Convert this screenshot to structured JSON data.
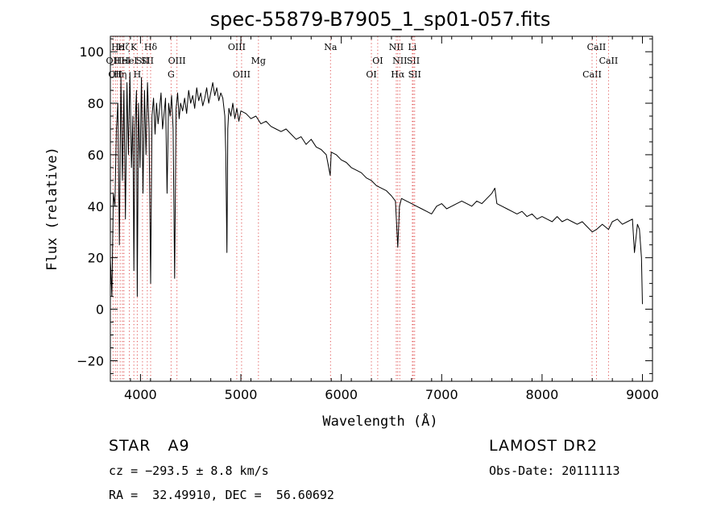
{
  "chart_data": {
    "type": "line",
    "title": "spec-55879-B7905_1_sp01-057.fits",
    "xlabel": "Wavelength (Å)",
    "ylabel": "Flux (relative)",
    "xlim": [
      3700,
      9100
    ],
    "ylim": [
      -28,
      106
    ],
    "x_ticks": [
      4000,
      5000,
      6000,
      7000,
      8000,
      9000
    ],
    "y_ticks": [
      -20,
      0,
      20,
      40,
      60,
      80,
      100
    ],
    "grid": false,
    "line_color": "#000000",
    "marker_color": "#e05050",
    "series": [
      {
        "x": [
          3700,
          3715,
          3730,
          3745,
          3760,
          3775,
          3790,
          3805,
          3820,
          3835,
          3850,
          3865,
          3880,
          3895,
          3910,
          3925,
          3934,
          3945,
          3960,
          3968,
          3980,
          3995,
          4010,
          4025,
          4040,
          4055,
          4070,
          4085,
          4101,
          4115,
          4130,
          4145,
          4160,
          4175,
          4190,
          4205,
          4220,
          4235,
          4250,
          4265,
          4280,
          4295,
          4310,
          4325,
          4340,
          4355,
          4370,
          4385,
          4400,
          4420,
          4440,
          4460,
          4480,
          4500,
          4520,
          4540,
          4560,
          4580,
          4600,
          4620,
          4640,
          4660,
          4680,
          4700,
          4720,
          4740,
          4760,
          4780,
          4800,
          4820,
          4840,
          4850,
          4861,
          4870,
          4880,
          4900,
          4920,
          4940,
          4960,
          4980,
          5000,
          5050,
          5100,
          5150,
          5200,
          5250,
          5300,
          5350,
          5400,
          5450,
          5500,
          5550,
          5600,
          5650,
          5700,
          5750,
          5800,
          5850,
          5890,
          5900,
          5950,
          6000,
          6050,
          6100,
          6150,
          6200,
          6250,
          6300,
          6350,
          6400,
          6450,
          6500,
          6540,
          6563,
          6580,
          6600,
          6650,
          6700,
          6750,
          6800,
          6850,
          6900,
          6950,
          7000,
          7050,
          7100,
          7150,
          7200,
          7250,
          7300,
          7350,
          7400,
          7450,
          7500,
          7530,
          7550,
          7600,
          7650,
          7700,
          7750,
          7800,
          7850,
          7900,
          7950,
          8000,
          8050,
          8100,
          8150,
          8200,
          8250,
          8300,
          8350,
          8400,
          8450,
          8500,
          8542,
          8600,
          8662,
          8700,
          8750,
          8800,
          8850,
          8900,
          8920,
          8950,
          8970,
          8990,
          9000
        ],
        "y": [
          20,
          5,
          45,
          40,
          70,
          80,
          25,
          90,
          50,
          85,
          35,
          88,
          60,
          92,
          55,
          75,
          15,
          70,
          85,
          5,
          80,
          55,
          90,
          45,
          85,
          60,
          88,
          70,
          10,
          75,
          82,
          68,
          80,
          72,
          78,
          84,
          70,
          76,
          82,
          45,
          80,
          75,
          83,
          70,
          12,
          78,
          84,
          74,
          80,
          77,
          82,
          76,
          85,
          80,
          83,
          78,
          86,
          81,
          84,
          79,
          82,
          86,
          80,
          84,
          88,
          83,
          86,
          81,
          84,
          82,
          75,
          60,
          22,
          70,
          78,
          75,
          80,
          74,
          78,
          73,
          77,
          76,
          74,
          75,
          72,
          73,
          71,
          70,
          69,
          70,
          68,
          66,
          67,
          64,
          66,
          63,
          62,
          60,
          52,
          61,
          60,
          58,
          57,
          55,
          54,
          53,
          51,
          50,
          48,
          47,
          46,
          44,
          42,
          24,
          40,
          43,
          42,
          41,
          40,
          39,
          38,
          37,
          40,
          41,
          39,
          40,
          41,
          42,
          41,
          40,
          42,
          41,
          43,
          45,
          47,
          41,
          40,
          39,
          38,
          37,
          38,
          36,
          37,
          35,
          36,
          35,
          34,
          36,
          34,
          35,
          34,
          33,
          34,
          32,
          30,
          31,
          33,
          31,
          34,
          35,
          33,
          34,
          35,
          22,
          33,
          31,
          20,
          2
        ]
      }
    ],
    "line_markers": [
      {
        "wavelength": 3727,
        "label": "OII",
        "row": 2
      },
      {
        "wavelength": 3750,
        "label": "OII",
        "row": 3
      },
      {
        "wavelength": 3770,
        "label": "Hε",
        "row": 1
      },
      {
        "wavelength": 3798,
        "label": "Hη",
        "row": 3
      },
      {
        "wavelength": 3820,
        "label": "HeI",
        "row": 2
      },
      {
        "wavelength": 3835,
        "label": "Hζ",
        "row": 1
      },
      {
        "wavelength": 3889,
        "label": "HeI",
        "row": 2
      },
      {
        "wavelength": 3934,
        "label": "K",
        "row": 1
      },
      {
        "wavelength": 3968,
        "label": "H",
        "row": 3
      },
      {
        "wavelength": 4020,
        "label": "SII",
        "row": 2
      },
      {
        "wavelength": 4068,
        "label": "SII",
        "row": 2
      },
      {
        "wavelength": 4101,
        "label": "Hδ",
        "row": 1
      },
      {
        "wavelength": 4305,
        "label": "G",
        "row": 3
      },
      {
        "wavelength": 4363,
        "label": "OIII",
        "row": 2
      },
      {
        "wavelength": 4959,
        "label": "OIII",
        "row": 1
      },
      {
        "wavelength": 5007,
        "label": "OIII",
        "row": 3
      },
      {
        "wavelength": 5175,
        "label": "Mg",
        "row": 2
      },
      {
        "wavelength": 5893,
        "label": "Na",
        "row": 1
      },
      {
        "wavelength": 6300,
        "label": "OI",
        "row": 3
      },
      {
        "wavelength": 6363,
        "label": "OI",
        "row": 2
      },
      {
        "wavelength": 6548,
        "label": "NII",
        "row": 1
      },
      {
        "wavelength": 6563,
        "label": "Hα",
        "row": 3
      },
      {
        "wavelength": 6583,
        "label": "NII",
        "row": 2
      },
      {
        "wavelength": 6708,
        "label": "Li",
        "row": 1
      },
      {
        "wavelength": 6717,
        "label": "SII",
        "row": 2
      },
      {
        "wavelength": 6731,
        "label": "SII",
        "row": 3
      },
      {
        "wavelength": 8498,
        "label": "CaII",
        "row": 3
      },
      {
        "wavelength": 8542,
        "label": "CaII",
        "row": 1
      },
      {
        "wavelength": 8662,
        "label": "CaII",
        "row": 2
      }
    ]
  },
  "info": {
    "star_type": "STAR   A9",
    "survey": "LAMOST DR2",
    "cz": "cz = −293.5 ± 8.8 km/s",
    "obs_date": "Obs-Date: 20111113",
    "coords": "RA =  32.49910, DEC =  56.60692"
  }
}
